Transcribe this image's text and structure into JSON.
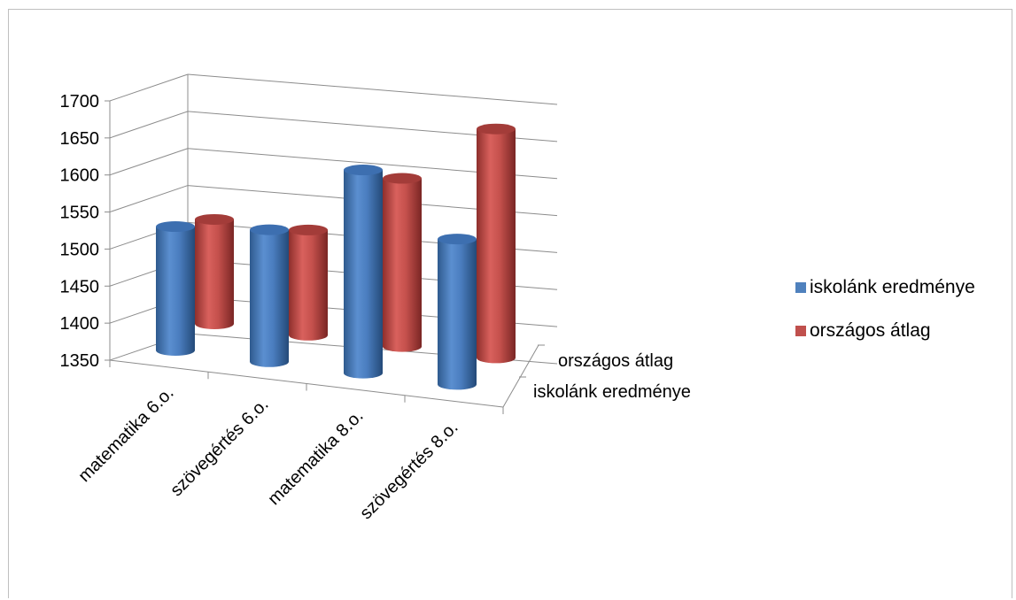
{
  "chart_data": {
    "type": "bar",
    "style": "3d-cylinder",
    "categories": [
      "matematika 6.o.",
      "szövegértés 6.o.",
      "matematika 8.o.",
      "szövegértés 8.o."
    ],
    "series": [
      {
        "name": "iskolánk eredménye",
        "color": "#4F81BD",
        "values": [
          1473,
          1484,
          1580,
          1502
        ]
      },
      {
        "name": "országos átlag",
        "color": "#C0504D",
        "values": [
          1497,
          1498,
          1583,
          1665
        ]
      }
    ],
    "yticks": [
      1350,
      1400,
      1450,
      1500,
      1550,
      1600,
      1650,
      1700
    ],
    "ylim": [
      1350,
      1700
    ],
    "depth_labels": [
      "országos átlag",
      "iskolánk eredménye"
    ],
    "legend_position": "right",
    "grid": true
  }
}
